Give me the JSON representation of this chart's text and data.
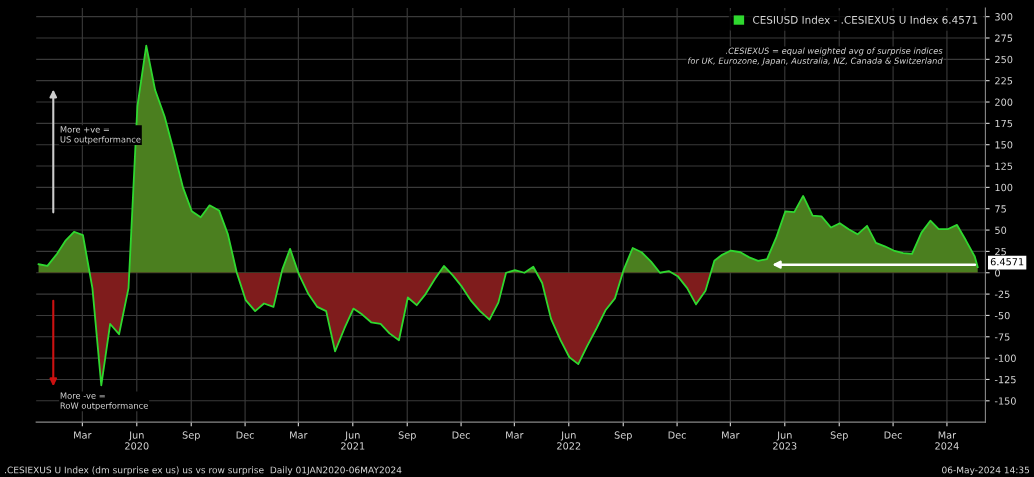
{
  "chart_data": {
    "type": "area",
    "x": [
      "2020-01-01",
      "2020-01-16",
      "2020-02-01",
      "2020-02-16",
      "2020-03-01",
      "2020-03-16",
      "2020-04-01",
      "2020-04-16",
      "2020-05-01",
      "2020-05-16",
      "2020-06-01",
      "2020-06-16",
      "2020-07-01",
      "2020-07-16",
      "2020-08-01",
      "2020-08-16",
      "2020-09-01",
      "2020-09-16",
      "2020-10-01",
      "2020-10-16",
      "2020-11-01",
      "2020-11-16",
      "2020-12-01",
      "2020-12-16",
      "2021-01-01",
      "2021-01-16",
      "2021-02-01",
      "2021-02-16",
      "2021-03-01",
      "2021-03-16",
      "2021-04-01",
      "2021-04-16",
      "2021-05-01",
      "2021-05-16",
      "2021-06-01",
      "2021-06-16",
      "2021-07-01",
      "2021-07-16",
      "2021-08-01",
      "2021-08-16",
      "2021-09-01",
      "2021-09-16",
      "2021-10-01",
      "2021-10-16",
      "2021-11-01",
      "2021-11-16",
      "2021-12-01",
      "2021-12-16",
      "2022-01-01",
      "2022-01-16",
      "2022-02-01",
      "2022-02-16",
      "2022-03-01",
      "2022-03-16",
      "2022-04-01",
      "2022-04-16",
      "2022-05-01",
      "2022-05-16",
      "2022-06-01",
      "2022-06-16",
      "2022-07-01",
      "2022-07-16",
      "2022-08-01",
      "2022-08-16",
      "2022-09-01",
      "2022-09-16",
      "2022-10-01",
      "2022-10-16",
      "2022-11-01",
      "2022-11-16",
      "2022-12-01",
      "2022-12-16",
      "2023-01-01",
      "2023-01-16",
      "2023-02-01",
      "2023-02-16",
      "2023-03-01",
      "2023-03-16",
      "2023-04-01",
      "2023-04-16",
      "2023-05-01",
      "2023-05-16",
      "2023-06-01",
      "2023-06-16",
      "2023-07-01",
      "2023-07-16",
      "2023-08-01",
      "2023-08-16",
      "2023-09-01",
      "2023-09-16",
      "2023-10-01",
      "2023-10-16",
      "2023-11-01",
      "2023-11-16",
      "2023-12-01",
      "2023-12-16",
      "2024-01-01",
      "2024-01-16",
      "2024-02-01",
      "2024-02-16",
      "2024-03-01",
      "2024-03-16",
      "2024-04-01",
      "2024-04-16",
      "2024-05-01",
      "2024-05-06"
    ],
    "series": [
      {
        "name": "CESIUSD Index - .CESIEXUS U Index 6.4571",
        "color": "#2fd82f",
        "colors": [
          "#4b7f1f",
          "#4b7f1f",
          "#4b7f1f",
          "#4b7f1f",
          "#4b7f1f",
          "#4b7f1f",
          "#7f1c1c",
          "#7f1c1c",
          "#7f1c1c",
          "#7f1c1c",
          "#7f1c1c",
          "#4b7f1f",
          "#4b7f1f",
          "#4b7f1f",
          "#4b7f1f",
          "#4b7f1f",
          "#4b7f1f",
          "#4b7f1f",
          "#4b7f1f",
          "#4b7f1f",
          "#4b7f1f",
          "#4b7f1f",
          "#4b7f1f",
          "#7f1c1c",
          "#7f1c1c",
          "#7f1c1c",
          "#7f1c1c",
          "#4b7f1f",
          "#4b7f1f",
          "#7f1c1c",
          "#7f1c1c",
          "#7f1c1c",
          "#7f1c1c",
          "#7f1c1c",
          "#7f1c1c",
          "#7f1c1c",
          "#7f1c1c",
          "#7f1c1c",
          "#7f1c1c",
          "#7f1c1c",
          "#7f1c1c",
          "#7f1c1c",
          "#7f1c1c",
          "#7f1c1c",
          "#7f1c1c",
          "#4b7f1f",
          "#7f1c1c",
          "#7f1c1c",
          "#7f1c1c",
          "#7f1c1c",
          "#7f1c1c",
          "#7f1c1c",
          "#4b7f1f",
          "#4b7f1f",
          "#4b7f1f",
          "#4b7f1f",
          "#7f1c1c",
          "#7f1c1c",
          "#7f1c1c",
          "#7f1c1c",
          "#7f1c1c",
          "#7f1c1c",
          "#7f1c1c",
          "#7f1c1c",
          "#7f1c1c",
          "#4b7f1f",
          "#4b7f1f",
          "#4b7f1f",
          "#4b7f1f",
          "#4b7f1f",
          "#4b7f1f",
          "#7f1c1c",
          "#7f1c1c",
          "#7f1c1c",
          "#7f1c1c",
          "#4b7f1f",
          "#4b7f1f",
          "#4b7f1f",
          "#4b7f1f",
          "#4b7f1f",
          "#4b7f1f",
          "#4b7f1f",
          "#4b7f1f",
          "#4b7f1f",
          "#4b7f1f",
          "#4b7f1f",
          "#4b7f1f",
          "#4b7f1f",
          "#4b7f1f",
          "#4b7f1f",
          "#4b7f1f",
          "#4b7f1f",
          "#4b7f1f",
          "#4b7f1f",
          "#4b7f1f",
          "#4b7f1f",
          "#4b7f1f",
          "#4b7f1f",
          "#4b7f1f",
          "#4b7f1f",
          "#4b7f1f",
          "#4b7f1f",
          "#4b7f1f",
          "#4b7f1f",
          "#4b7f1f",
          "#4b7f1f"
        ],
        "values": [
          10,
          8,
          22,
          38,
          48,
          44,
          -18,
          -132,
          -60,
          -72,
          -18,
          195,
          266,
          214,
          183,
          144,
          100,
          72,
          65,
          79,
          73,
          45,
          0,
          -32,
          -45,
          -36,
          -40,
          4,
          28,
          -2,
          -25,
          -40,
          -45,
          -92,
          -65,
          -42,
          -49,
          -58,
          -60,
          -71,
          -79,
          -29,
          -38,
          -25,
          -7,
          8,
          -3,
          -16,
          -33,
          -45,
          -55,
          -35,
          0,
          3,
          0,
          7,
          -12,
          -54,
          -79,
          -99,
          -107,
          -86,
          -65,
          -44,
          -30,
          4,
          29,
          24,
          13,
          0,
          2,
          -4,
          -18,
          -37,
          -21,
          14,
          21,
          26,
          24,
          18,
          14,
          16,
          42,
          72,
          71,
          90,
          67,
          66,
          53,
          58,
          51,
          45,
          55,
          35,
          31,
          26,
          23,
          22,
          47,
          61,
          51,
          51,
          56,
          38,
          19,
          6.4571
        ]
      }
    ],
    "xlim": [
      "2019-12-28",
      "2024-05-19"
    ],
    "xticks": [
      {
        "value": "2020-03-15",
        "label": "Mar"
      },
      {
        "value": "2020-06-15",
        "label": "Jun\n2020"
      },
      {
        "value": "2020-09-15",
        "label": "Sep"
      },
      {
        "value": "2020-12-15",
        "label": "Dec"
      },
      {
        "value": "2021-03-15",
        "label": "Mar"
      },
      {
        "value": "2021-06-15",
        "label": "Jun\n2021"
      },
      {
        "value": "2021-09-15",
        "label": "Sep"
      },
      {
        "value": "2021-12-15",
        "label": "Dec"
      },
      {
        "value": "2022-03-15",
        "label": "Mar"
      },
      {
        "value": "2022-06-15",
        "label": "Jun\n2022"
      },
      {
        "value": "2022-09-15",
        "label": "Sep"
      },
      {
        "value": "2022-12-15",
        "label": "Dec"
      },
      {
        "value": "2023-03-15",
        "label": "Mar"
      },
      {
        "value": "2023-06-15",
        "label": "Jun\n2023"
      },
      {
        "value": "2023-09-15",
        "label": "Sep"
      },
      {
        "value": "2023-12-15",
        "label": "Dec"
      },
      {
        "value": "2024-03-15",
        "label": "Mar\n2024"
      }
    ],
    "ylim": [
      -175,
      310
    ],
    "yticks": [
      -150,
      -125,
      -100,
      -75,
      -50,
      -25,
      0,
      25,
      50,
      75,
      100,
      125,
      150,
      175,
      200,
      225,
      250,
      275,
      300
    ],
    "grid": true,
    "legend": "top right",
    "annotations": [
      {
        "text": "6.4571",
        "x": "2024-05-06",
        "y": 6.4571
      },
      ".CESIEXUS = equal weighted avg of surprise indices\nfor UK, Eurozone, Japan, Australia, NZ, Canada & Switzerland",
      "More +ve =\nUS outperformance",
      "More -ve =\nRoW outperformance",
      ".CESIEXUS U Index (dm surprise ex us) us vs row surprise  Daily 01JAN2020-06MAY2024",
      "06-May-2024 14:35"
    ]
  }
}
